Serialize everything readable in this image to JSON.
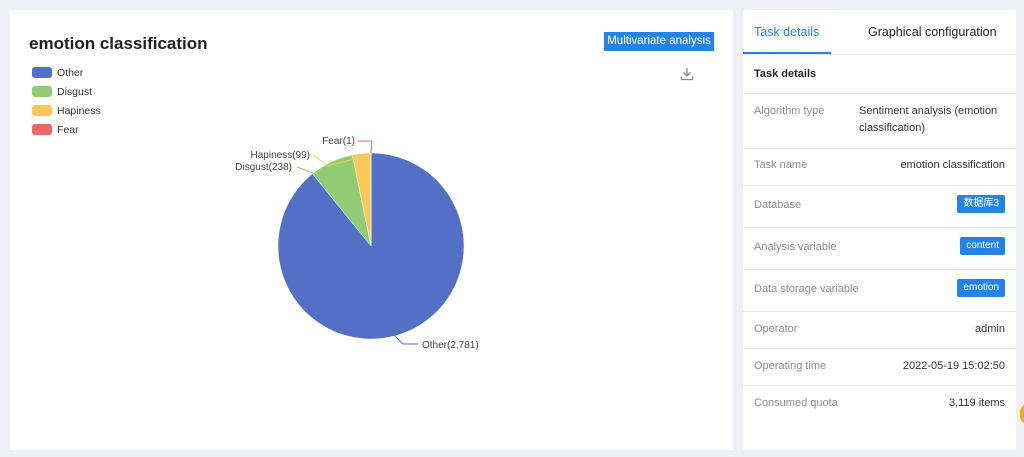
{
  "chart_panel": {
    "title": "emotion classification",
    "multivariate_button": "Multivariate analysis"
  },
  "chart_data": {
    "type": "pie",
    "title": "emotion classification",
    "legend_position": "top-left",
    "slices": [
      {
        "name": "Other",
        "value": 2781,
        "label": "Other(2,781)",
        "color": "#5470c6"
      },
      {
        "name": "Disgust",
        "value": 238,
        "label": "Disgust(238)",
        "color": "#91cc75"
      },
      {
        "name": "Hapiness",
        "value": 99,
        "label": "Hapiness(99)",
        "color": "#fac858"
      },
      {
        "name": "Fear",
        "value": 1,
        "label": "Fear(1)",
        "color": "#ee6666"
      }
    ]
  },
  "details_panel": {
    "tabs": [
      "Task details",
      "Graphical configuration"
    ],
    "active_tab": 0,
    "section_title": "Task details",
    "rows": [
      {
        "label": "Algorithm type",
        "value": "Sentiment analysis (emotion classification)"
      },
      {
        "label": "Task name",
        "value": "emotion classification"
      },
      {
        "label": "Database",
        "value": "数据库3"
      },
      {
        "label": "Analysis variable",
        "value": "content"
      },
      {
        "label": "Data storage variable",
        "value": "emotion"
      },
      {
        "label": "Operator",
        "value": "admin"
      },
      {
        "label": "Operating time",
        "value": "2022-05-19 15:02:50"
      },
      {
        "label": "Consumed quota",
        "value": "3,119 items"
      }
    ]
  },
  "colors": {
    "accent": "#2483e6",
    "background": "#eef0f4"
  },
  "icons": {
    "download": "download-icon"
  }
}
